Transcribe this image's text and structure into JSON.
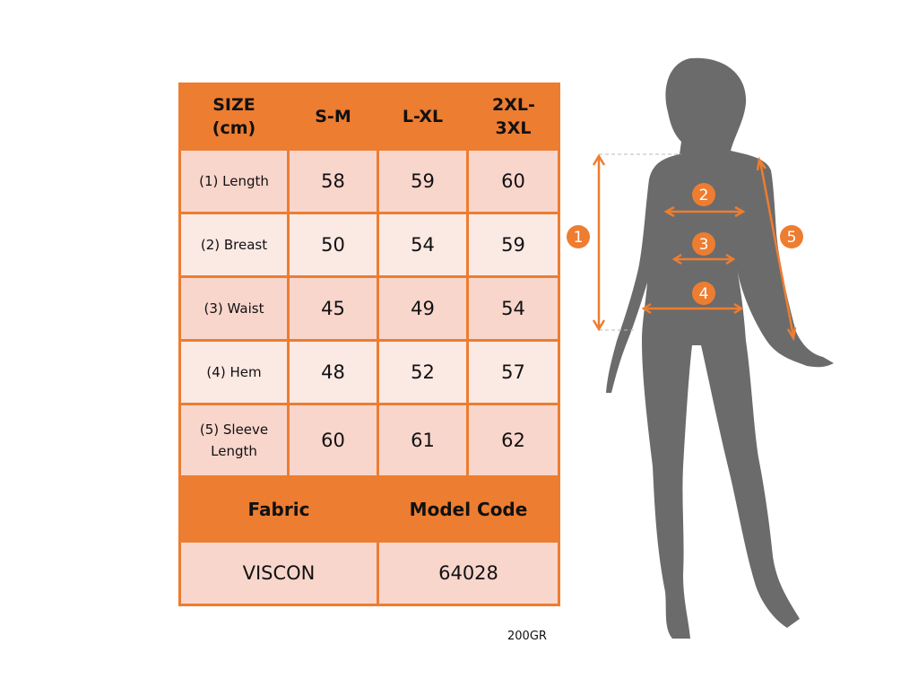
{
  "table": {
    "header": [
      "SIZE (cm)",
      "S-M",
      "L-XL",
      "2XL-3XL"
    ],
    "rows": [
      {
        "label": "(1) Length",
        "values": [
          "58",
          "59",
          "60"
        ]
      },
      {
        "label": "(2) Breast",
        "values": [
          "50",
          "54",
          "59"
        ]
      },
      {
        "label": "(3) Waist",
        "values": [
          "45",
          "49",
          "54"
        ]
      },
      {
        "label": "(4) Hem",
        "values": [
          "48",
          "52",
          "57"
        ]
      },
      {
        "label": "(5) Sleeve Length",
        "values": [
          "60",
          "61",
          "62"
        ]
      }
    ],
    "fabric_label": "Fabric",
    "model_code_label": "Model Code",
    "fabric": "VISCON",
    "model_code": "64028"
  },
  "note": "200GR",
  "figure": {
    "markers": [
      "1",
      "2",
      "3",
      "4",
      "5"
    ],
    "colors": {
      "accent": "#ed7d31",
      "silhouette": "#6b6b6b",
      "row_dark": "#f8d6cc",
      "row_light": "#fbe9e4"
    }
  }
}
